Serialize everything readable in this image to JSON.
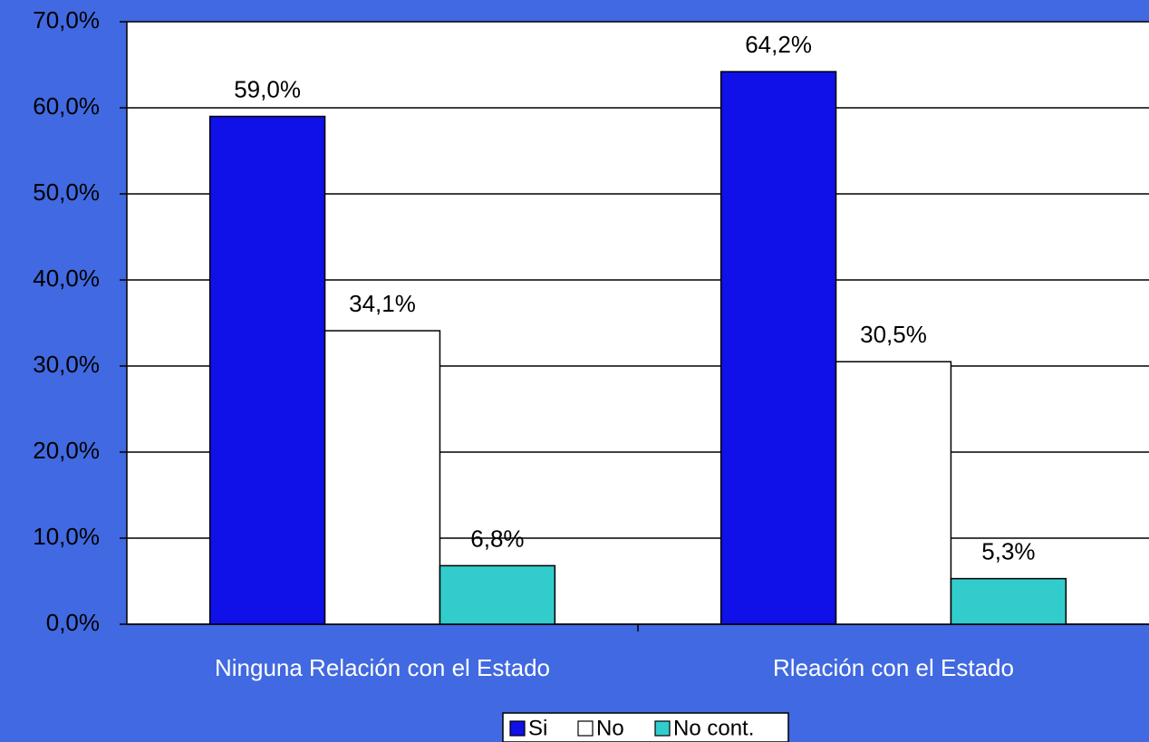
{
  "chart_data": {
    "type": "bar",
    "categories": [
      "Ninguna Relación con el Estado",
      "Rleación con el Estado"
    ],
    "series": [
      {
        "name": "Si",
        "color": "#1010e8",
        "values": [
          59.0,
          64.2
        ],
        "value_labels": [
          "59,0%",
          "64,2%"
        ]
      },
      {
        "name": "No",
        "color": "#ffffff",
        "values": [
          34.1,
          30.5
        ],
        "value_labels": [
          "34,1%",
          "30,5%"
        ]
      },
      {
        "name": "No cont.",
        "color": "#33cccc",
        "values": [
          6.8,
          5.3
        ],
        "value_labels": [
          "6,8%",
          "5,3%"
        ]
      }
    ],
    "ylim": [
      0,
      70
    ],
    "yticks": [
      {
        "value": 0,
        "label": "0,0%"
      },
      {
        "value": 10,
        "label": "10,0%"
      },
      {
        "value": 20,
        "label": "20,0%"
      },
      {
        "value": 30,
        "label": "30,0%"
      },
      {
        "value": 40,
        "label": "40,0%"
      },
      {
        "value": 50,
        "label": "50,0%"
      },
      {
        "value": 60,
        "label": "60,0%"
      },
      {
        "value": 70,
        "label": "70,0%"
      }
    ],
    "grid": true,
    "legend": "bottom"
  }
}
